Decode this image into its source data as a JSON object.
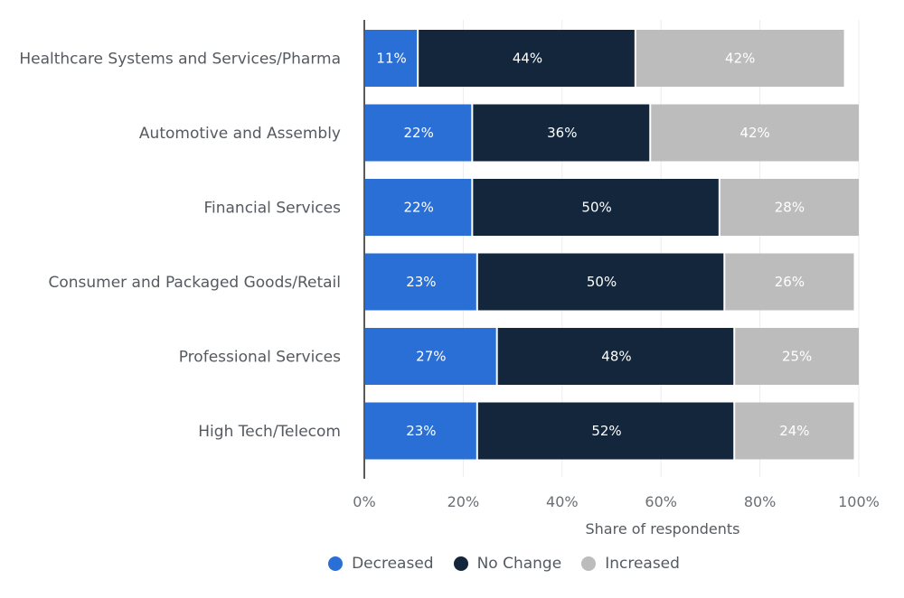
{
  "chart_data": {
    "type": "bar",
    "orientation": "horizontal",
    "stacked": true,
    "title": "",
    "xlabel": "Share of respondents",
    "ylabel": "",
    "xlim": [
      0,
      100
    ],
    "x_ticks": [
      "0%",
      "20%",
      "40%",
      "60%",
      "80%",
      "100%"
    ],
    "x_tick_values": [
      0,
      20,
      40,
      60,
      80,
      100
    ],
    "grid": true,
    "legend_position": "bottom",
    "categories": [
      "Healthcare Systems and Services/Pharma",
      "Automotive and  Assembly",
      "Financial Services",
      "Consumer and Packaged Goods/Retail",
      "Professional  Services",
      "High Tech/Telecom"
    ],
    "series": [
      {
        "name": "Decreased",
        "color": "#2a6fd6",
        "values": [
          11,
          22,
          22,
          23,
          27,
          23
        ],
        "labels": [
          "11%",
          "22%",
          "22%",
          "23%",
          "27%",
          "23%"
        ]
      },
      {
        "name": "No Change",
        "color": "#13263c",
        "values": [
          44,
          36,
          50,
          50,
          48,
          52
        ],
        "labels": [
          "44%",
          "36%",
          "50%",
          "50%",
          "48%",
          "52%"
        ]
      },
      {
        "name": "Increased",
        "color": "#bcbcbc",
        "values": [
          42,
          42,
          28,
          26,
          25,
          24
        ],
        "labels": [
          "42%",
          "42%",
          "28%",
          "26%",
          "25%",
          "24%"
        ]
      }
    ]
  }
}
